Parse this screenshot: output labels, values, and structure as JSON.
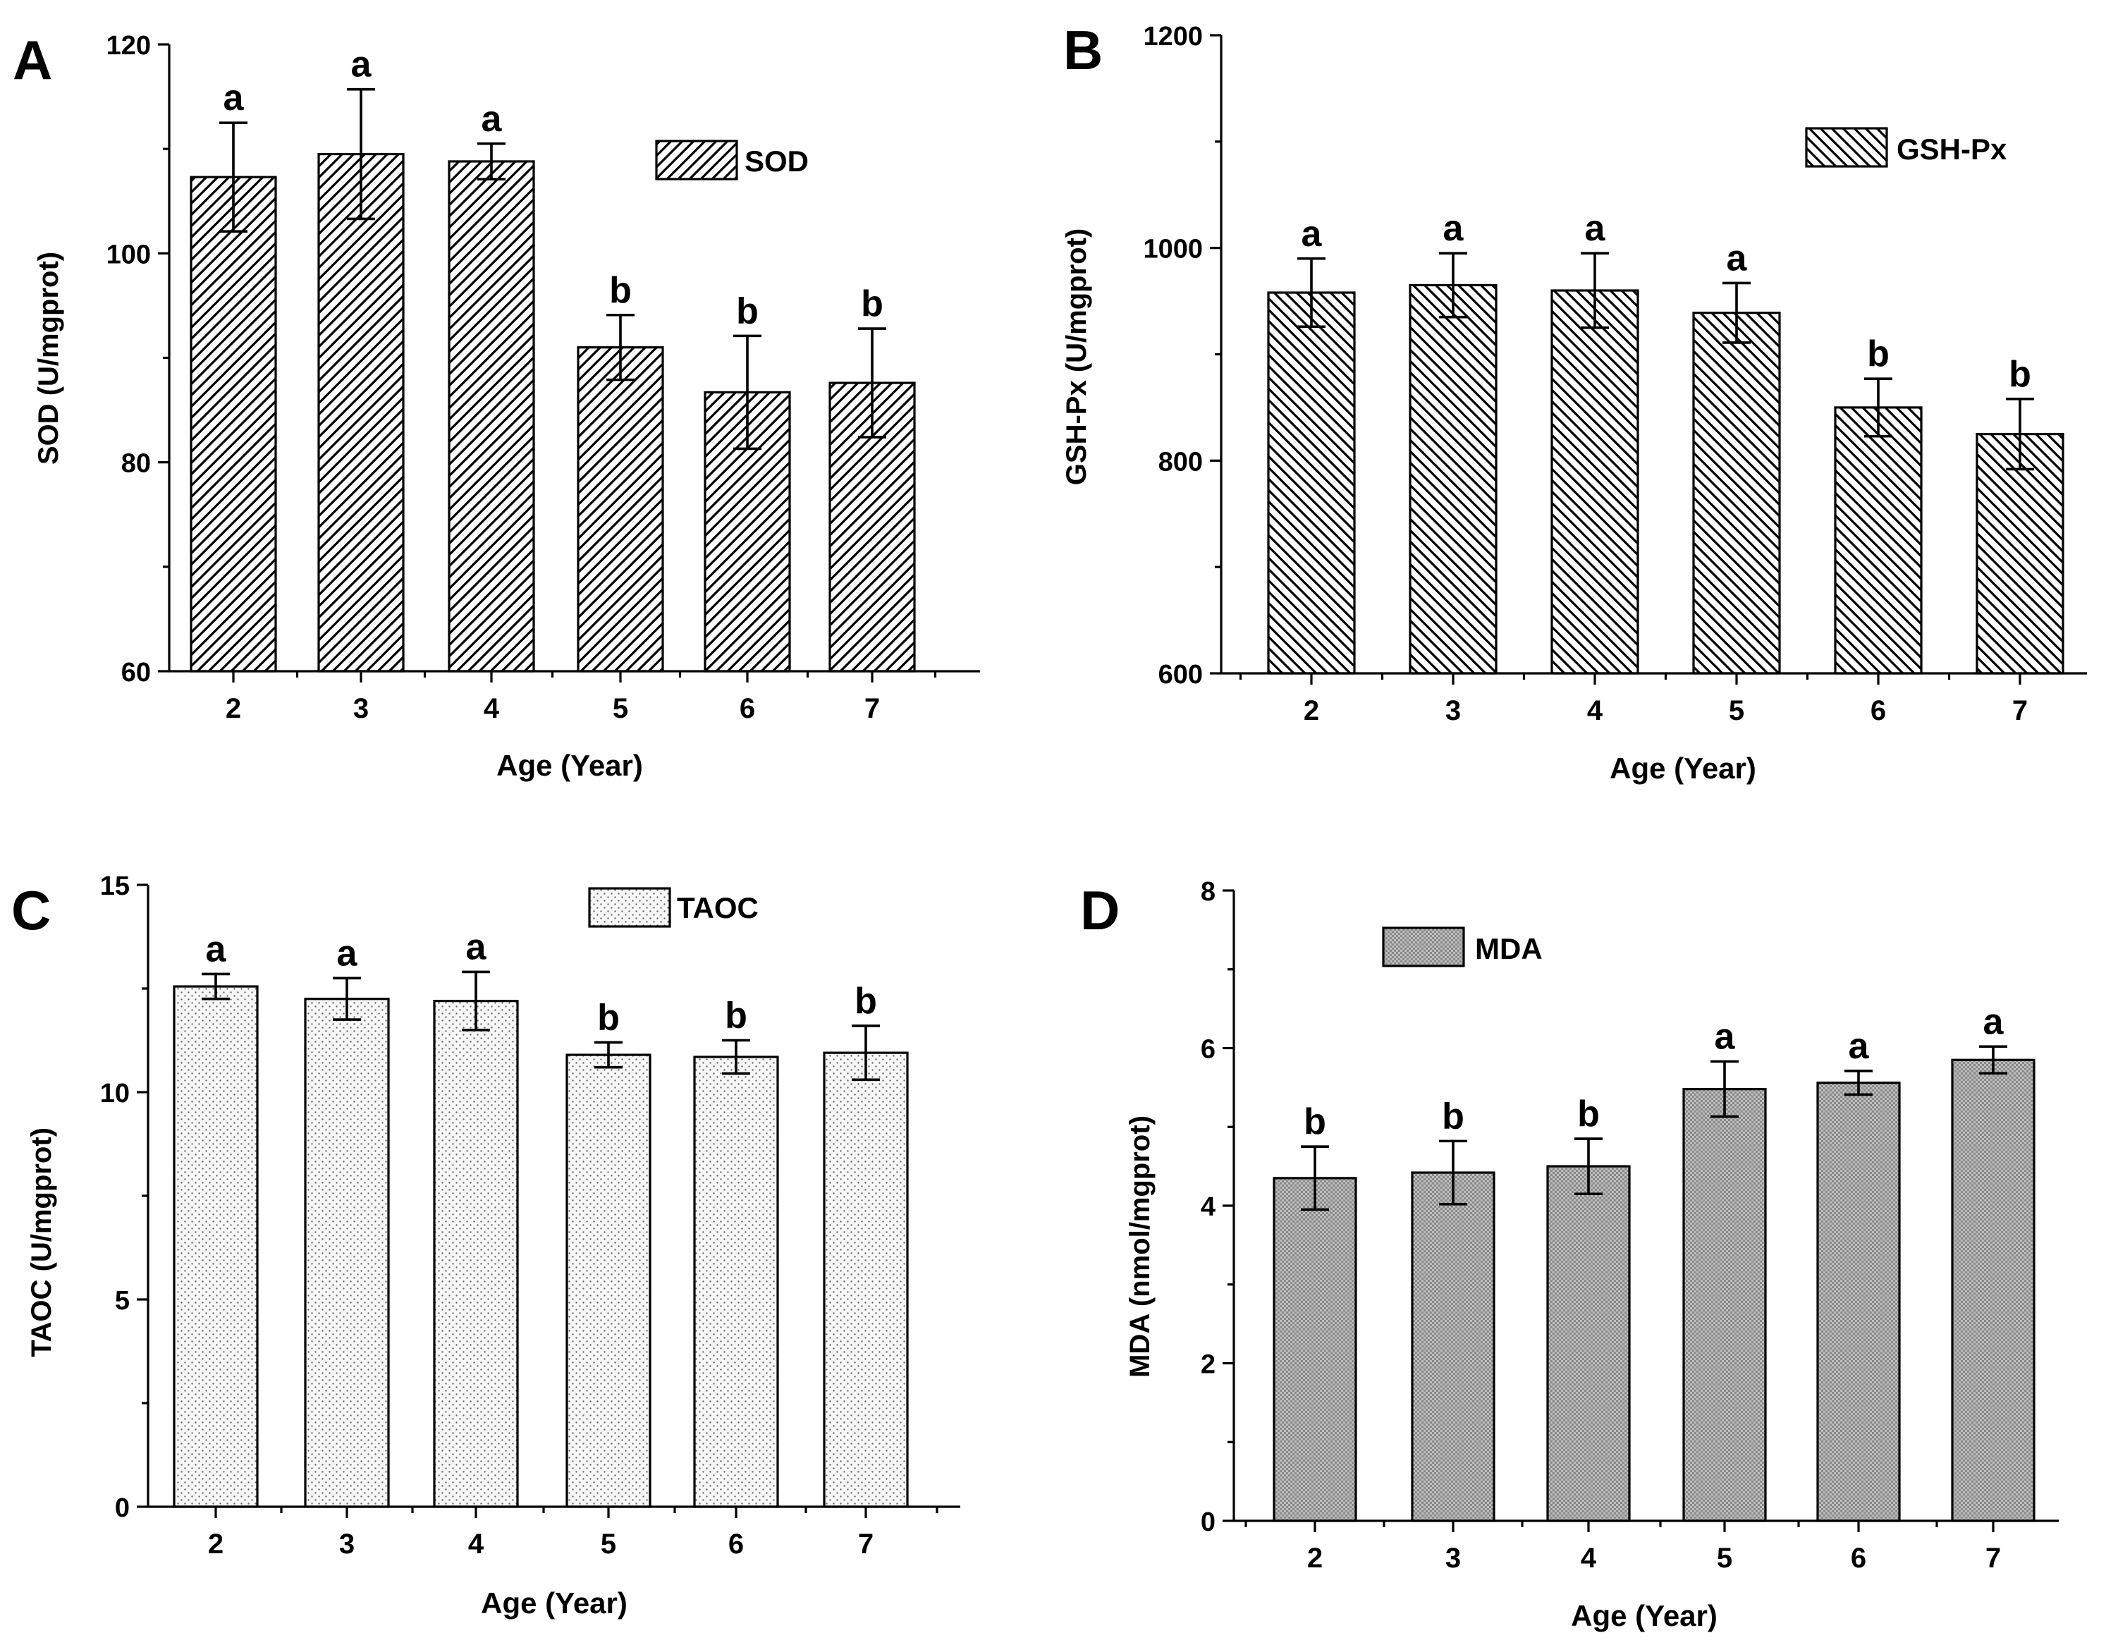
{
  "chart_data": [
    {
      "panel": "A",
      "type": "bar",
      "categories": [
        "2",
        "3",
        "4",
        "5",
        "6",
        "7"
      ],
      "values": [
        107.3,
        109.5,
        108.8,
        91.0,
        86.7,
        87.6
      ],
      "errors": [
        5.2,
        6.2,
        1.7,
        3.1,
        5.4,
        5.2
      ],
      "letters": [
        "a",
        "a",
        "a",
        "b",
        "b",
        "b"
      ],
      "xlabel": "Age (Year)",
      "ylabel": "SOD (U/mgprot)",
      "ylim": [
        60,
        120
      ],
      "yticks": [
        60,
        80,
        100,
        120
      ],
      "legend": "SOD",
      "pattern": "diag-right"
    },
    {
      "panel": "B",
      "type": "bar",
      "categories": [
        "2",
        "3",
        "4",
        "5",
        "6",
        "7"
      ],
      "values": [
        958,
        965,
        960,
        939,
        850,
        825
      ],
      "errors": [
        32,
        30,
        35,
        28,
        27,
        33
      ],
      "letters": [
        "a",
        "a",
        "a",
        "a",
        "b",
        "b"
      ],
      "xlabel": "Age (Year)",
      "ylabel": "GSH-Px (U/mgprot)",
      "ylim": [
        600,
        1200
      ],
      "yticks": [
        600,
        800,
        1000,
        1200
      ],
      "legend": "GSH-Px",
      "pattern": "diag-left"
    },
    {
      "panel": "C",
      "type": "bar",
      "categories": [
        "2",
        "3",
        "4",
        "5",
        "6",
        "7"
      ],
      "values": [
        12.55,
        12.25,
        12.2,
        10.9,
        10.85,
        10.95
      ],
      "errors": [
        0.3,
        0.5,
        0.7,
        0.3,
        0.4,
        0.65
      ],
      "letters": [
        "a",
        "a",
        "a",
        "b",
        "b",
        "b"
      ],
      "xlabel": "Age (Year)",
      "ylabel": "TAOC (U/mgprot)",
      "ylim": [
        0,
        15
      ],
      "yticks": [
        0,
        5,
        10,
        15
      ],
      "legend": "TAOC",
      "pattern": "dots"
    },
    {
      "panel": "D",
      "type": "bar",
      "categories": [
        "2",
        "3",
        "4",
        "5",
        "6",
        "7"
      ],
      "values": [
        4.35,
        4.42,
        4.5,
        5.48,
        5.56,
        5.85
      ],
      "errors": [
        0.4,
        0.4,
        0.35,
        0.35,
        0.15,
        0.17
      ],
      "letters": [
        "b",
        "b",
        "b",
        "a",
        "a",
        "a"
      ],
      "xlabel": "Age (Year)",
      "ylabel": "MDA (nmol/mgprot)",
      "ylim": [
        0,
        8
      ],
      "yticks": [
        0,
        2,
        4,
        6,
        8
      ],
      "legend": "MDA",
      "pattern": "dense"
    }
  ]
}
